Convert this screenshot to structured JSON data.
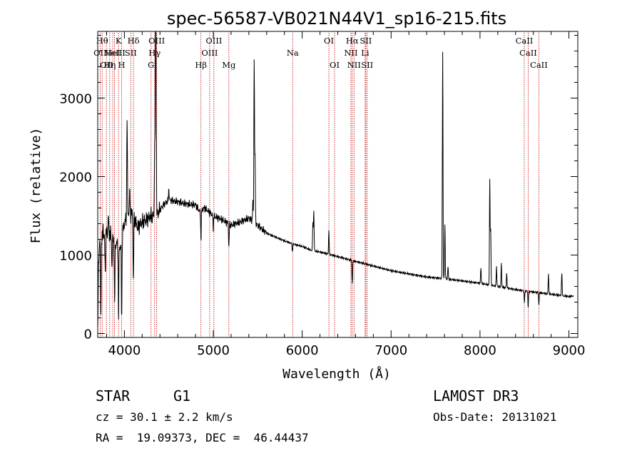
{
  "chart_data": {
    "type": "line",
    "title": "spec-56587-VB021N44V1_sp16-215.fits",
    "xlabel": "Wavelength (Å)",
    "ylabel": "Flux (relative)",
    "xlim": [
      3700,
      9100
    ],
    "ylim": [
      -50,
      3850
    ],
    "x_ticks": [
      4000,
      5000,
      6000,
      7000,
      8000,
      9000
    ],
    "x_tick_labels": [
      "4000",
      "5000",
      "6000",
      "7000",
      "8000",
      "9000"
    ],
    "y_ticks": [
      0,
      1000,
      2000,
      3000
    ],
    "y_tick_labels": [
      "0",
      "1000",
      "2000",
      "3000"
    ],
    "series": [
      {
        "name": "spectrum",
        "continuum": [
          [
            3700,
            0
          ],
          [
            3710,
            950
          ],
          [
            3730,
            1250
          ],
          [
            3760,
            1150
          ],
          [
            3800,
            1300
          ],
          [
            3850,
            1250
          ],
          [
            3900,
            1150
          ],
          [
            3950,
            1100
          ],
          [
            4000,
            1400
          ],
          [
            4050,
            1550
          ],
          [
            4100,
            1500
          ],
          [
            4150,
            1350
          ],
          [
            4200,
            1420
          ],
          [
            4250,
            1450
          ],
          [
            4300,
            1500
          ],
          [
            4350,
            1480
          ],
          [
            4400,
            1580
          ],
          [
            4450,
            1650
          ],
          [
            4500,
            1700
          ],
          [
            4600,
            1680
          ],
          [
            4700,
            1650
          ],
          [
            4800,
            1640
          ],
          [
            4850,
            1550
          ],
          [
            4900,
            1600
          ],
          [
            5000,
            1500
          ],
          [
            5100,
            1450
          ],
          [
            5200,
            1380
          ],
          [
            5300,
            1420
          ],
          [
            5400,
            1470
          ],
          [
            5500,
            1380
          ],
          [
            5600,
            1280
          ],
          [
            5700,
            1230
          ],
          [
            5800,
            1180
          ],
          [
            5900,
            1140
          ],
          [
            6000,
            1110
          ],
          [
            6100,
            1060
          ],
          [
            6200,
            1040
          ],
          [
            6300,
            1010
          ],
          [
            6400,
            980
          ],
          [
            6500,
            950
          ],
          [
            6600,
            920
          ],
          [
            6700,
            890
          ],
          [
            6800,
            860
          ],
          [
            7000,
            800
          ],
          [
            7200,
            760
          ],
          [
            7400,
            720
          ],
          [
            7600,
            700
          ],
          [
            7800,
            670
          ],
          [
            8000,
            640
          ],
          [
            8200,
            600
          ],
          [
            8400,
            560
          ],
          [
            8600,
            530
          ],
          [
            8800,
            500
          ],
          [
            9000,
            470
          ],
          [
            9050,
            480
          ]
        ],
        "features": [
          [
            3735,
            -900
          ],
          [
            3760,
            250
          ],
          [
            3785,
            -450
          ],
          [
            3820,
            200
          ],
          [
            3860,
            -350
          ],
          [
            3890,
            -800
          ],
          [
            3934,
            -900
          ],
          [
            3969,
            -1000
          ],
          [
            4030,
            1300
          ],
          [
            4060,
            250
          ],
          [
            4101,
            -850
          ],
          [
            4340,
            900
          ],
          [
            4350,
            2000
          ],
          [
            4355,
            1800
          ],
          [
            4500,
            150
          ],
          [
            4861,
            -350
          ],
          [
            5000,
            -150
          ],
          [
            5175,
            -300
          ],
          [
            5445,
            250
          ],
          [
            5460,
            2050
          ],
          [
            5470,
            800
          ],
          [
            5890,
            -100
          ],
          [
            6120,
            350
          ],
          [
            6130,
            500
          ],
          [
            6300,
            300
          ],
          [
            6563,
            -300
          ],
          [
            7580,
            2900
          ],
          [
            7605,
            700
          ],
          [
            7640,
            150
          ],
          [
            8010,
            200
          ],
          [
            8110,
            1350
          ],
          [
            8120,
            700
          ],
          [
            8185,
            250
          ],
          [
            8240,
            300
          ],
          [
            8300,
            200
          ],
          [
            8500,
            -150
          ],
          [
            8542,
            -200
          ],
          [
            8662,
            -150
          ],
          [
            8770,
            250
          ],
          [
            8920,
            300
          ]
        ]
      }
    ],
    "spectral_lines": [
      {
        "wavelength": 3727,
        "label": "OII",
        "row": 2
      },
      {
        "wavelength": 3750,
        "label": "Hθ",
        "row": 1
      },
      {
        "wavelength": 3798,
        "label": "OII",
        "row": 3
      },
      {
        "wavelength": 3835,
        "label": "Hη",
        "row": 3
      },
      {
        "wavelength": 3869,
        "label": "HeI",
        "row": 2
      },
      {
        "wavelength": 3889,
        "label": "NeIII",
        "row": 2
      },
      {
        "wavelength": 3934,
        "label": "K",
        "row": 1
      },
      {
        "wavelength": 3969,
        "label": "H",
        "row": 3
      },
      {
        "wavelength": 4072,
        "label": "SII",
        "row": 2
      },
      {
        "wavelength": 4102,
        "label": "Hδ",
        "row": 1
      },
      {
        "wavelength": 4300,
        "label": "G",
        "row": 3
      },
      {
        "wavelength": 4340,
        "label": "Hγ",
        "row": 2
      },
      {
        "wavelength": 4363,
        "label": "OIII",
        "row": 1
      },
      {
        "wavelength": 4861,
        "label": "Hβ",
        "row": 3
      },
      {
        "wavelength": 4959,
        "label": "OIII",
        "row": 2
      },
      {
        "wavelength": 5007,
        "label": "OIII",
        "row": 1
      },
      {
        "wavelength": 5175,
        "label": "Mg",
        "row": 3
      },
      {
        "wavelength": 5893,
        "label": "Na",
        "row": 2
      },
      {
        "wavelength": 6300,
        "label": "OI",
        "row": 1
      },
      {
        "wavelength": 6364,
        "label": "OI",
        "row": 3
      },
      {
        "wavelength": 6548,
        "label": "NII",
        "row": 2
      },
      {
        "wavelength": 6563,
        "label": "Hα",
        "row": 1
      },
      {
        "wavelength": 6583,
        "label": "NII",
        "row": 3
      },
      {
        "wavelength": 6708,
        "label": "Li",
        "row": 2
      },
      {
        "wavelength": 6716,
        "label": "SII",
        "row": 1
      },
      {
        "wavelength": 6731,
        "label": "SII",
        "row": 3
      },
      {
        "wavelength": 8498,
        "label": "CaII",
        "row": 1
      },
      {
        "wavelength": 8542,
        "label": "CaII",
        "row": 2
      },
      {
        "wavelength": 8662,
        "label": "CaII",
        "row": 3
      }
    ]
  },
  "info": {
    "class_label": "STAR",
    "subclass_label": "G1",
    "survey_label": "LAMOST DR3",
    "redshift_text": "cz = 30.1 ± 2.2 km/s",
    "obs_date_text": "Obs-Date: 20131021",
    "coords_text": "RA =  19.09373, DEC =  46.44437"
  },
  "colors": {
    "spectrum": "#000000",
    "line_markers": "#c00000",
    "axes": "#000000",
    "background": "#ffffff"
  }
}
